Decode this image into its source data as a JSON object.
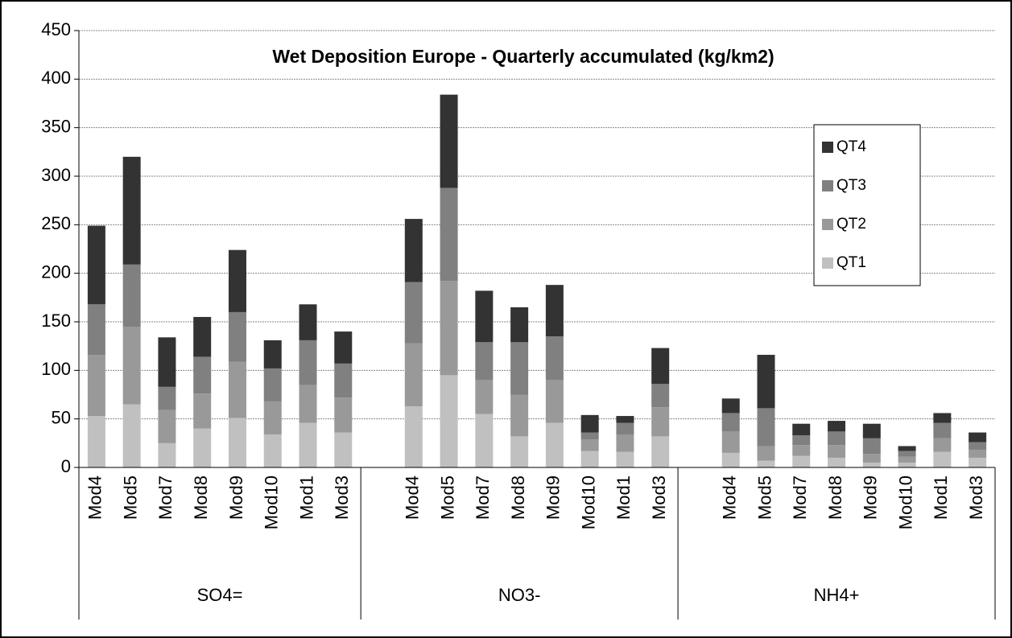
{
  "chart_data": {
    "type": "stacked_bar",
    "title": "Wet Deposition Europe - Quarterly accumulated (kg/km2)",
    "groups": [
      {
        "name": "SO4=",
        "categories": [
          "Mod4",
          "Mod5",
          "Mod7",
          "Mod8",
          "Mod9",
          "Mod10",
          "Mod1",
          "Mod3"
        ]
      },
      {
        "name": "NO3-",
        "categories": [
          "Mod4",
          "Mod5",
          "Mod7",
          "Mod8",
          "Mod9",
          "Mod10",
          "Mod1",
          "Mod3"
        ]
      },
      {
        "name": "NH4+",
        "categories": [
          "Mod4",
          "Mod5",
          "Mod7",
          "Mod8",
          "Mod9",
          "Mod10",
          "Mod1",
          "Mod3"
        ]
      }
    ],
    "series": [
      {
        "name": "QT1",
        "color": "#c0c0c0",
        "values": [
          53,
          65,
          25,
          40,
          51,
          34,
          46,
          36,
          63,
          95,
          55,
          32,
          46,
          17,
          16,
          32,
          15,
          7,
          12,
          10,
          5,
          5,
          16,
          10
        ]
      },
      {
        "name": "QT2",
        "color": "#999999",
        "values": [
          63,
          80,
          34,
          36,
          58,
          34,
          39,
          36,
          65,
          97,
          35,
          43,
          44,
          12,
          18,
          30,
          22,
          15,
          11,
          13,
          9,
          6,
          14,
          8
        ]
      },
      {
        "name": "QT3",
        "color": "#808080",
        "values": [
          52,
          64,
          24,
          38,
          51,
          34,
          46,
          35,
          63,
          96,
          39,
          54,
          45,
          7,
          12,
          24,
          19,
          39,
          10,
          14,
          16,
          6,
          16,
          8
        ]
      },
      {
        "name": "QT4",
        "color": "#333333",
        "values": [
          81,
          111,
          51,
          41,
          64,
          29,
          37,
          33,
          65,
          96,
          53,
          36,
          53,
          18,
          7,
          37,
          15,
          55,
          12,
          11,
          15,
          5,
          10,
          10
        ]
      }
    ],
    "ylim": [
      0,
      450
    ],
    "yticks": [
      0,
      50,
      100,
      150,
      200,
      250,
      300,
      350,
      400,
      450
    ],
    "grid": true,
    "legend": "upper right"
  }
}
